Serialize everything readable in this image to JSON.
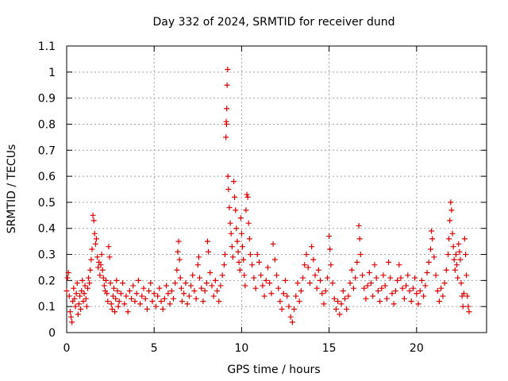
{
  "chart_data": {
    "type": "scatter",
    "title": "Day 332 of 2024, SRMTID for receiver dund",
    "xlabel": "GPS time / hours",
    "ylabel": "SRMTID / TECUs",
    "xlim": [
      0,
      24
    ],
    "ylim": [
      0,
      1.1
    ],
    "x_ticks": [
      0,
      5,
      10,
      15,
      20
    ],
    "x_tick_labels": [
      "0",
      "5",
      "10",
      "15",
      "20"
    ],
    "y_ticks": [
      0,
      0.1,
      0.2,
      0.3,
      0.4,
      0.5,
      0.6,
      0.7,
      0.8,
      0.9,
      1.0,
      1.1
    ],
    "y_tick_labels": [
      "0",
      "0.1",
      "0.2",
      "0.3",
      "0.4",
      "0.5",
      "0.6",
      "0.7",
      "0.8",
      "0.9",
      "1",
      "1.1"
    ],
    "grid": true,
    "marker": "+",
    "color": "#e00000",
    "series": [
      {
        "name": "SRMTID",
        "points": [
          [
            0.0,
            0.16
          ],
          [
            0.05,
            0.21
          ],
          [
            0.1,
            0.23
          ],
          [
            0.15,
            0.14
          ],
          [
            0.2,
            0.08
          ],
          [
            0.25,
            0.06
          ],
          [
            0.3,
            0.04
          ],
          [
            0.35,
            0.12
          ],
          [
            0.4,
            0.17
          ],
          [
            0.45,
            0.13
          ],
          [
            0.5,
            0.1
          ],
          [
            0.55,
            0.15
          ],
          [
            0.6,
            0.19
          ],
          [
            0.65,
            0.07
          ],
          [
            0.7,
            0.11
          ],
          [
            0.75,
            0.14
          ],
          [
            0.8,
            0.09
          ],
          [
            0.85,
            0.16
          ],
          [
            0.9,
            0.2
          ],
          [
            0.95,
            0.12
          ],
          [
            1.0,
            0.15
          ],
          [
            1.05,
            0.18
          ],
          [
            1.1,
            0.13
          ],
          [
            1.15,
            0.1
          ],
          [
            1.2,
            0.17
          ],
          [
            1.25,
            0.21
          ],
          [
            1.3,
            0.19
          ],
          [
            1.35,
            0.24
          ],
          [
            1.4,
            0.28
          ],
          [
            1.45,
            0.32
          ],
          [
            1.5,
            0.45
          ],
          [
            1.55,
            0.43
          ],
          [
            1.6,
            0.38
          ],
          [
            1.65,
            0.34
          ],
          [
            1.7,
            0.36
          ],
          [
            1.75,
            0.29
          ],
          [
            1.8,
            0.25
          ],
          [
            1.85,
            0.27
          ],
          [
            1.9,
            0.22
          ],
          [
            1.95,
            0.26
          ],
          [
            2.0,
            0.3
          ],
          [
            2.05,
            0.24
          ],
          [
            2.1,
            0.21
          ],
          [
            2.15,
            0.18
          ],
          [
            2.2,
            0.16
          ],
          [
            2.25,
            0.2
          ],
          [
            2.3,
            0.15
          ],
          [
            2.35,
            0.12
          ],
          [
            2.4,
            0.33
          ],
          [
            2.45,
            0.29
          ],
          [
            2.5,
            0.19
          ],
          [
            2.55,
            0.11
          ],
          [
            2.6,
            0.09
          ],
          [
            2.65,
            0.14
          ],
          [
            2.7,
            0.17
          ],
          [
            2.75,
            0.08
          ],
          [
            2.8,
            0.13
          ],
          [
            2.85,
            0.2
          ],
          [
            2.9,
            0.16
          ],
          [
            2.95,
            0.1
          ],
          [
            3.0,
            0.12
          ],
          [
            3.1,
            0.15
          ],
          [
            3.2,
            0.19
          ],
          [
            3.3,
            0.11
          ],
          [
            3.4,
            0.14
          ],
          [
            3.5,
            0.08
          ],
          [
            3.6,
            0.16
          ],
          [
            3.7,
            0.13
          ],
          [
            3.8,
            0.18
          ],
          [
            3.9,
            0.12
          ],
          [
            4.0,
            0.15
          ],
          [
            4.1,
            0.2
          ],
          [
            4.2,
            0.11
          ],
          [
            4.3,
            0.14
          ],
          [
            4.4,
            0.17
          ],
          [
            4.5,
            0.13
          ],
          [
            4.6,
            0.09
          ],
          [
            4.7,
            0.16
          ],
          [
            4.8,
            0.19
          ],
          [
            4.9,
            0.12
          ],
          [
            5.0,
            0.15
          ],
          [
            5.1,
            0.1
          ],
          [
            5.2,
            0.14
          ],
          [
            5.3,
            0.17
          ],
          [
            5.4,
            0.12
          ],
          [
            5.5,
            0.09
          ],
          [
            5.6,
            0.13
          ],
          [
            5.7,
            0.18
          ],
          [
            5.8,
            0.15
          ],
          [
            5.9,
            0.11
          ],
          [
            6.0,
            0.16
          ],
          [
            6.1,
            0.13
          ],
          [
            6.2,
            0.19
          ],
          [
            6.3,
            0.24
          ],
          [
            6.35,
            0.31
          ],
          [
            6.4,
            0.35
          ],
          [
            6.45,
            0.28
          ],
          [
            6.5,
            0.21
          ],
          [
            6.55,
            0.17
          ],
          [
            6.6,
            0.12
          ],
          [
            6.7,
            0.15
          ],
          [
            6.8,
            0.19
          ],
          [
            6.9,
            0.11
          ],
          [
            7.0,
            0.14
          ],
          [
            7.1,
            0.18
          ],
          [
            7.2,
            0.22
          ],
          [
            7.3,
            0.16
          ],
          [
            7.4,
            0.13
          ],
          [
            7.5,
            0.26
          ],
          [
            7.55,
            0.29
          ],
          [
            7.6,
            0.21
          ],
          [
            7.7,
            0.17
          ],
          [
            7.8,
            0.12
          ],
          [
            7.9,
            0.16
          ],
          [
            8.0,
            0.19
          ],
          [
            8.05,
            0.35
          ],
          [
            8.1,
            0.31
          ],
          [
            8.2,
            0.23
          ],
          [
            8.3,
            0.18
          ],
          [
            8.4,
            0.14
          ],
          [
            8.5,
            0.2
          ],
          [
            8.6,
            0.16
          ],
          [
            8.7,
            0.12
          ],
          [
            8.8,
            0.18
          ],
          [
            8.9,
            0.22
          ],
          [
            9.0,
            0.26
          ],
          [
            9.05,
            0.3
          ],
          [
            9.1,
            0.75
          ],
          [
            9.12,
            0.81
          ],
          [
            9.14,
            0.8
          ],
          [
            9.15,
            0.86
          ],
          [
            9.17,
            0.95
          ],
          [
            9.2,
            1.01
          ],
          [
            9.22,
            0.6
          ],
          [
            9.25,
            0.55
          ],
          [
            9.3,
            0.48
          ],
          [
            9.35,
            0.42
          ],
          [
            9.4,
            0.38
          ],
          [
            9.45,
            0.33
          ],
          [
            9.5,
            0.29
          ],
          [
            9.55,
            0.58
          ],
          [
            9.6,
            0.52
          ],
          [
            9.65,
            0.47
          ],
          [
            9.7,
            0.4
          ],
          [
            9.75,
            0.35
          ],
          [
            9.8,
            0.31
          ],
          [
            9.85,
            0.27
          ],
          [
            9.9,
            0.24
          ],
          [
            9.95,
            0.44
          ],
          [
            10.0,
            0.38
          ],
          [
            10.05,
            0.33
          ],
          [
            10.1,
            0.28
          ],
          [
            10.15,
            0.22
          ],
          [
            10.2,
            0.18
          ],
          [
            10.25,
            0.47
          ],
          [
            10.3,
            0.53
          ],
          [
            10.35,
            0.52
          ],
          [
            10.4,
            0.42
          ],
          [
            10.45,
            0.36
          ],
          [
            10.5,
            0.3
          ],
          [
            10.6,
            0.26
          ],
          [
            10.7,
            0.21
          ],
          [
            10.8,
            0.17
          ],
          [
            10.9,
            0.3
          ],
          [
            11.0,
            0.27
          ],
          [
            11.1,
            0.22
          ],
          [
            11.2,
            0.18
          ],
          [
            11.3,
            0.14
          ],
          [
            11.4,
            0.2
          ],
          [
            11.5,
            0.25
          ],
          [
            11.6,
            0.19
          ],
          [
            11.7,
            0.15
          ],
          [
            11.8,
            0.34
          ],
          [
            11.9,
            0.28
          ],
          [
            12.0,
            0.22
          ],
          [
            12.1,
            0.17
          ],
          [
            12.2,
            0.12
          ],
          [
            12.3,
            0.09
          ],
          [
            12.4,
            0.15
          ],
          [
            12.5,
            0.2
          ],
          [
            12.6,
            0.14
          ],
          [
            12.7,
            0.1
          ],
          [
            12.8,
            0.06
          ],
          [
            12.9,
            0.04
          ],
          [
            13.0,
            0.09
          ],
          [
            13.1,
            0.14
          ],
          [
            13.2,
            0.19
          ],
          [
            13.3,
            0.12
          ],
          [
            13.4,
            0.16
          ],
          [
            13.5,
            0.21
          ],
          [
            13.6,
            0.26
          ],
          [
            13.7,
            0.3
          ],
          [
            13.8,
            0.25
          ],
          [
            13.9,
            0.19
          ],
          [
            14.0,
            0.33
          ],
          [
            14.1,
            0.28
          ],
          [
            14.2,
            0.22
          ],
          [
            14.3,
            0.17
          ],
          [
            14.4,
            0.24
          ],
          [
            14.5,
            0.2
          ],
          [
            14.6,
            0.15
          ],
          [
            14.7,
            0.11
          ],
          [
            14.8,
            0.16
          ],
          [
            14.9,
            0.21
          ],
          [
            15.0,
            0.37
          ],
          [
            15.05,
            0.32
          ],
          [
            15.1,
            0.26
          ],
          [
            15.2,
            0.19
          ],
          [
            15.3,
            0.13
          ],
          [
            15.4,
            0.09
          ],
          [
            15.5,
            0.12
          ],
          [
            15.6,
            0.07
          ],
          [
            15.7,
            0.11
          ],
          [
            15.8,
            0.16
          ],
          [
            15.9,
            0.13
          ],
          [
            16.0,
            0.09
          ],
          [
            16.1,
            0.14
          ],
          [
            16.2,
            0.19
          ],
          [
            16.3,
            0.24
          ],
          [
            16.4,
            0.17
          ],
          [
            16.5,
            0.21
          ],
          [
            16.6,
            0.27
          ],
          [
            16.7,
            0.41
          ],
          [
            16.75,
            0.36
          ],
          [
            16.8,
            0.3
          ],
          [
            16.9,
            0.22
          ],
          [
            17.0,
            0.17
          ],
          [
            17.1,
            0.13
          ],
          [
            17.2,
            0.18
          ],
          [
            17.3,
            0.23
          ],
          [
            17.4,
            0.19
          ],
          [
            17.5,
            0.14
          ],
          [
            17.6,
            0.26
          ],
          [
            17.7,
            0.21
          ],
          [
            17.8,
            0.16
          ],
          [
            17.9,
            0.12
          ],
          [
            18.0,
            0.17
          ],
          [
            18.1,
            0.22
          ],
          [
            18.2,
            0.18
          ],
          [
            18.3,
            0.13
          ],
          [
            18.4,
            0.27
          ],
          [
            18.5,
            0.21
          ],
          [
            18.6,
            0.15
          ],
          [
            18.7,
            0.11
          ],
          [
            18.8,
            0.16
          ],
          [
            18.9,
            0.2
          ],
          [
            19.0,
            0.26
          ],
          [
            19.1,
            0.21
          ],
          [
            19.2,
            0.17
          ],
          [
            19.3,
            0.13
          ],
          [
            19.4,
            0.18
          ],
          [
            19.5,
            0.22
          ],
          [
            19.6,
            0.16
          ],
          [
            19.7,
            0.12
          ],
          [
            19.8,
            0.17
          ],
          [
            19.9,
            0.21
          ],
          [
            20.0,
            0.15
          ],
          [
            20.1,
            0.11
          ],
          [
            20.2,
            0.16
          ],
          [
            20.3,
            0.2
          ],
          [
            20.4,
            0.14
          ],
          [
            20.5,
            0.18
          ],
          [
            20.6,
            0.23
          ],
          [
            20.7,
            0.27
          ],
          [
            20.8,
            0.32
          ],
          [
            20.85,
            0.39
          ],
          [
            20.9,
            0.36
          ],
          [
            21.0,
            0.29
          ],
          [
            21.1,
            0.22
          ],
          [
            21.2,
            0.16
          ],
          [
            21.3,
            0.12
          ],
          [
            21.4,
            0.17
          ],
          [
            21.5,
            0.14
          ],
          [
            21.6,
            0.19
          ],
          [
            21.7,
            0.24
          ],
          [
            21.8,
            0.3
          ],
          [
            21.85,
            0.36
          ],
          [
            21.9,
            0.43
          ],
          [
            21.95,
            0.5
          ],
          [
            22.0,
            0.47
          ],
          [
            22.05,
            0.38
          ],
          [
            22.1,
            0.33
          ],
          [
            22.15,
            0.28
          ],
          [
            22.2,
            0.24
          ],
          [
            22.25,
            0.3
          ],
          [
            22.3,
            0.26
          ],
          [
            22.35,
            0.21
          ],
          [
            22.4,
            0.34
          ],
          [
            22.45,
            0.31
          ],
          [
            22.5,
            0.28
          ],
          [
            22.55,
            0.19
          ],
          [
            22.6,
            0.14
          ],
          [
            22.65,
            0.1
          ],
          [
            22.7,
            0.15
          ],
          [
            22.75,
            0.36
          ],
          [
            22.8,
            0.3
          ],
          [
            22.85,
            0.22
          ],
          [
            22.9,
            0.14
          ],
          [
            22.95,
            0.1
          ],
          [
            23.0,
            0.08
          ]
        ]
      }
    ]
  }
}
